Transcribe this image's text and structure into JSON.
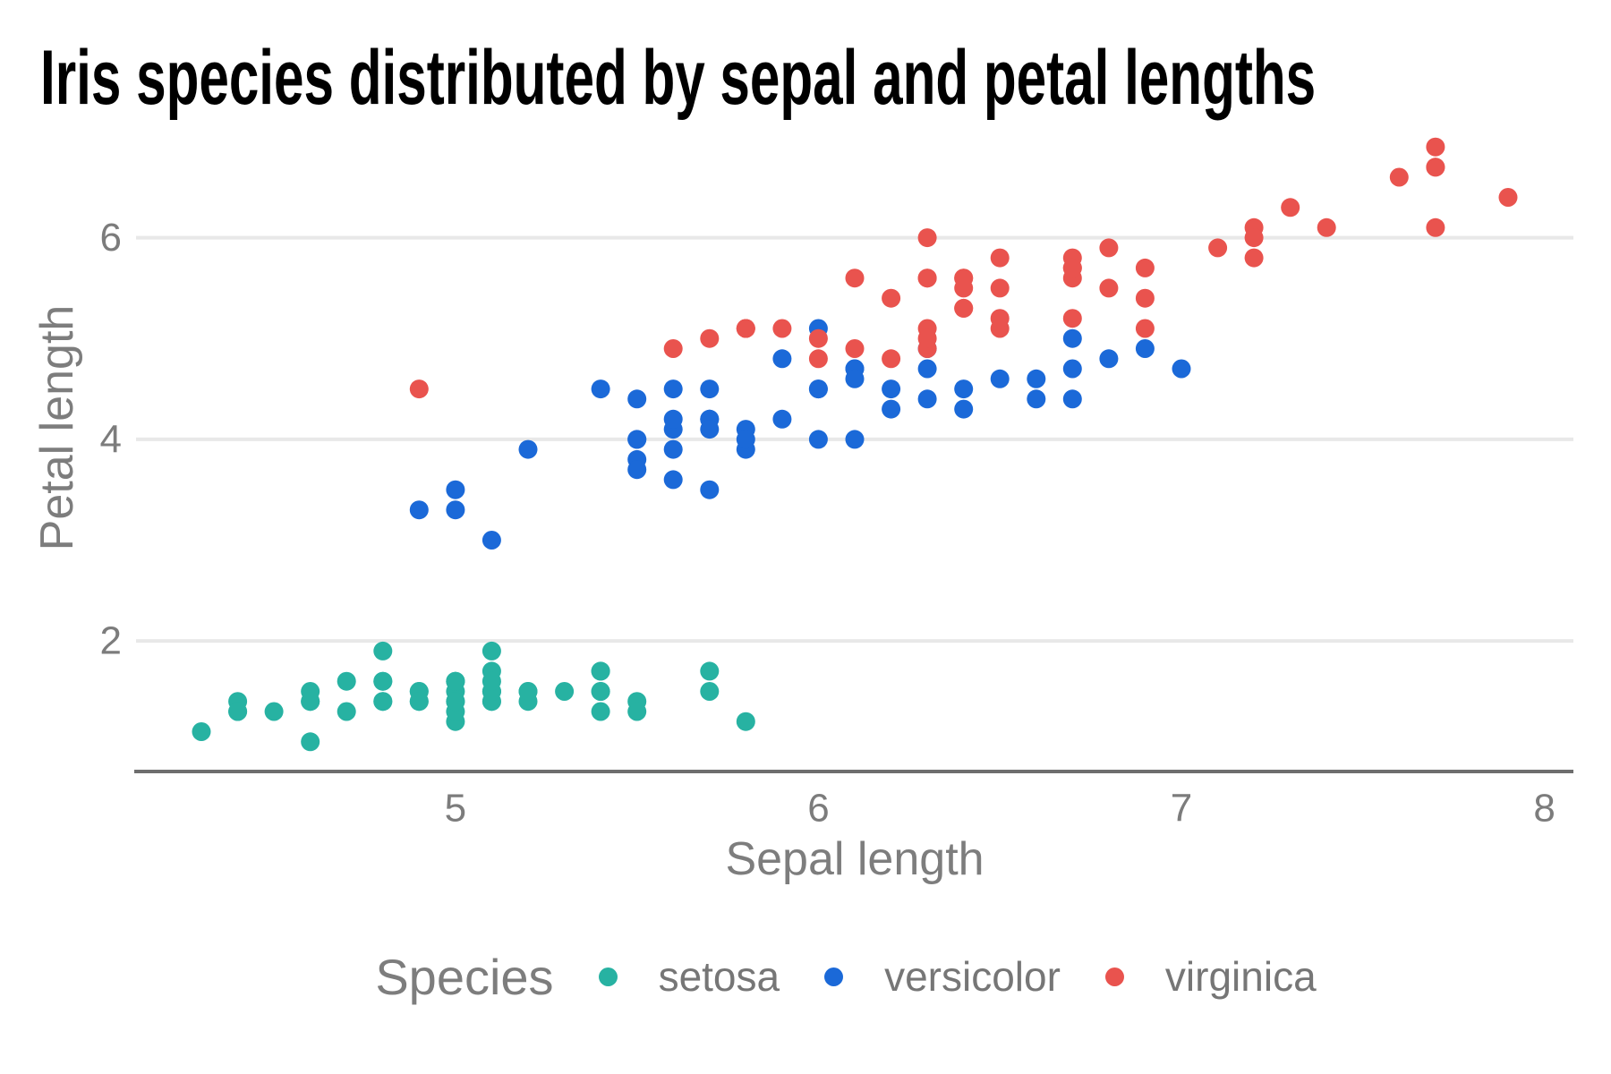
{
  "title": "Iris species distributed by sepal and petal lengths",
  "chart_data": {
    "type": "scatter",
    "title": "Iris species distributed by sepal and petal lengths",
    "xlabel": "Sepal length",
    "ylabel": "Petal length",
    "xlim": [
      4.12,
      8.08
    ],
    "ylim": [
      0.705,
      7.195
    ],
    "x_ticks": [
      5,
      6,
      7,
      8
    ],
    "y_ticks": [
      2,
      4,
      6
    ],
    "grid": "horizontal-only",
    "gridline_color": "#e8e8e8",
    "axis_line_color": "#6e6e6e",
    "point_radius": 10.5,
    "legend": {
      "title": "Species",
      "position": "bottom"
    },
    "series": [
      {
        "name": "setosa",
        "color": "#27b2a2",
        "points": [
          [
            5.1,
            1.4
          ],
          [
            4.9,
            1.4
          ],
          [
            4.7,
            1.3
          ],
          [
            4.6,
            1.5
          ],
          [
            5.0,
            1.4
          ],
          [
            5.4,
            1.7
          ],
          [
            4.6,
            1.4
          ],
          [
            5.0,
            1.5
          ],
          [
            4.4,
            1.4
          ],
          [
            4.9,
            1.5
          ],
          [
            5.4,
            1.5
          ],
          [
            4.8,
            1.6
          ],
          [
            4.8,
            1.4
          ],
          [
            4.3,
            1.1
          ],
          [
            5.8,
            1.2
          ],
          [
            5.7,
            1.5
          ],
          [
            5.4,
            1.3
          ],
          [
            5.1,
            1.4
          ],
          [
            5.7,
            1.7
          ],
          [
            5.1,
            1.5
          ],
          [
            5.4,
            1.7
          ],
          [
            5.1,
            1.5
          ],
          [
            4.6,
            1.0
          ],
          [
            5.1,
            1.7
          ],
          [
            4.8,
            1.9
          ],
          [
            5.0,
            1.6
          ],
          [
            5.0,
            1.6
          ],
          [
            5.2,
            1.5
          ],
          [
            5.2,
            1.4
          ],
          [
            4.7,
            1.6
          ],
          [
            4.8,
            1.6
          ],
          [
            5.4,
            1.5
          ],
          [
            5.2,
            1.5
          ],
          [
            5.5,
            1.4
          ],
          [
            4.9,
            1.5
          ],
          [
            5.0,
            1.2
          ],
          [
            5.5,
            1.3
          ],
          [
            4.9,
            1.4
          ],
          [
            4.4,
            1.3
          ],
          [
            5.1,
            1.5
          ],
          [
            5.0,
            1.3
          ],
          [
            4.5,
            1.3
          ],
          [
            4.4,
            1.3
          ],
          [
            5.0,
            1.6
          ],
          [
            5.1,
            1.9
          ],
          [
            4.8,
            1.4
          ],
          [
            5.1,
            1.6
          ],
          [
            4.6,
            1.4
          ],
          [
            5.3,
            1.5
          ],
          [
            5.0,
            1.4
          ]
        ]
      },
      {
        "name": "versicolor",
        "color": "#1b69d8",
        "points": [
          [
            7.0,
            4.7
          ],
          [
            6.4,
            4.5
          ],
          [
            6.9,
            4.9
          ],
          [
            5.5,
            4.0
          ],
          [
            6.5,
            4.6
          ],
          [
            5.7,
            4.5
          ],
          [
            6.3,
            4.7
          ],
          [
            4.9,
            3.3
          ],
          [
            6.6,
            4.6
          ],
          [
            5.2,
            3.9
          ],
          [
            5.0,
            3.5
          ],
          [
            5.9,
            4.2
          ],
          [
            6.0,
            4.0
          ],
          [
            6.1,
            4.7
          ],
          [
            5.6,
            3.6
          ],
          [
            6.7,
            4.4
          ],
          [
            5.6,
            4.5
          ],
          [
            5.8,
            4.1
          ],
          [
            6.2,
            4.5
          ],
          [
            5.6,
            3.9
          ],
          [
            5.9,
            4.8
          ],
          [
            6.1,
            4.0
          ],
          [
            6.3,
            4.9
          ],
          [
            6.1,
            4.7
          ],
          [
            6.4,
            4.3
          ],
          [
            6.6,
            4.4
          ],
          [
            6.8,
            4.8
          ],
          [
            6.7,
            5.0
          ],
          [
            6.0,
            4.5
          ],
          [
            5.7,
            3.5
          ],
          [
            5.5,
            3.8
          ],
          [
            5.5,
            3.7
          ],
          [
            5.8,
            3.9
          ],
          [
            6.0,
            5.1
          ],
          [
            5.4,
            4.5
          ],
          [
            6.0,
            4.5
          ],
          [
            6.7,
            4.7
          ],
          [
            6.3,
            4.4
          ],
          [
            5.6,
            4.1
          ],
          [
            5.5,
            4.0
          ],
          [
            5.5,
            4.4
          ],
          [
            6.1,
            4.6
          ],
          [
            5.8,
            4.0
          ],
          [
            5.0,
            3.3
          ],
          [
            5.6,
            4.2
          ],
          [
            5.7,
            4.2
          ],
          [
            5.7,
            4.2
          ],
          [
            6.2,
            4.3
          ],
          [
            5.1,
            3.0
          ],
          [
            5.7,
            4.1
          ]
        ]
      },
      {
        "name": "virginica",
        "color": "#e9534e",
        "points": [
          [
            6.3,
            6.0
          ],
          [
            5.8,
            5.1
          ],
          [
            7.1,
            5.9
          ],
          [
            6.3,
            5.6
          ],
          [
            6.5,
            5.8
          ],
          [
            7.6,
            6.6
          ],
          [
            4.9,
            4.5
          ],
          [
            7.3,
            6.3
          ],
          [
            6.7,
            5.8
          ],
          [
            7.2,
            6.1
          ],
          [
            6.5,
            5.1
          ],
          [
            6.4,
            5.3
          ],
          [
            6.8,
            5.5
          ],
          [
            5.7,
            5.0
          ],
          [
            5.8,
            5.1
          ],
          [
            6.4,
            5.3
          ],
          [
            6.5,
            5.5
          ],
          [
            7.7,
            6.7
          ],
          [
            7.7,
            6.9
          ],
          [
            6.0,
            5.0
          ],
          [
            6.9,
            5.7
          ],
          [
            5.6,
            4.9
          ],
          [
            7.7,
            6.7
          ],
          [
            6.3,
            4.9
          ],
          [
            6.7,
            5.7
          ],
          [
            7.2,
            6.0
          ],
          [
            6.2,
            4.8
          ],
          [
            6.1,
            4.9
          ],
          [
            6.4,
            5.6
          ],
          [
            7.2,
            5.8
          ],
          [
            7.4,
            6.1
          ],
          [
            7.9,
            6.4
          ],
          [
            6.4,
            5.6
          ],
          [
            6.3,
            5.1
          ],
          [
            6.1,
            5.6
          ],
          [
            7.7,
            6.1
          ],
          [
            6.3,
            5.6
          ],
          [
            6.4,
            5.5
          ],
          [
            6.0,
            4.8
          ],
          [
            6.9,
            5.4
          ],
          [
            6.7,
            5.6
          ],
          [
            6.9,
            5.1
          ],
          [
            5.8,
            5.1
          ],
          [
            6.8,
            5.9
          ],
          [
            6.7,
            5.7
          ],
          [
            6.7,
            5.2
          ],
          [
            6.3,
            5.0
          ],
          [
            6.5,
            5.2
          ],
          [
            6.2,
            5.4
          ],
          [
            5.9,
            5.1
          ]
        ]
      }
    ]
  }
}
